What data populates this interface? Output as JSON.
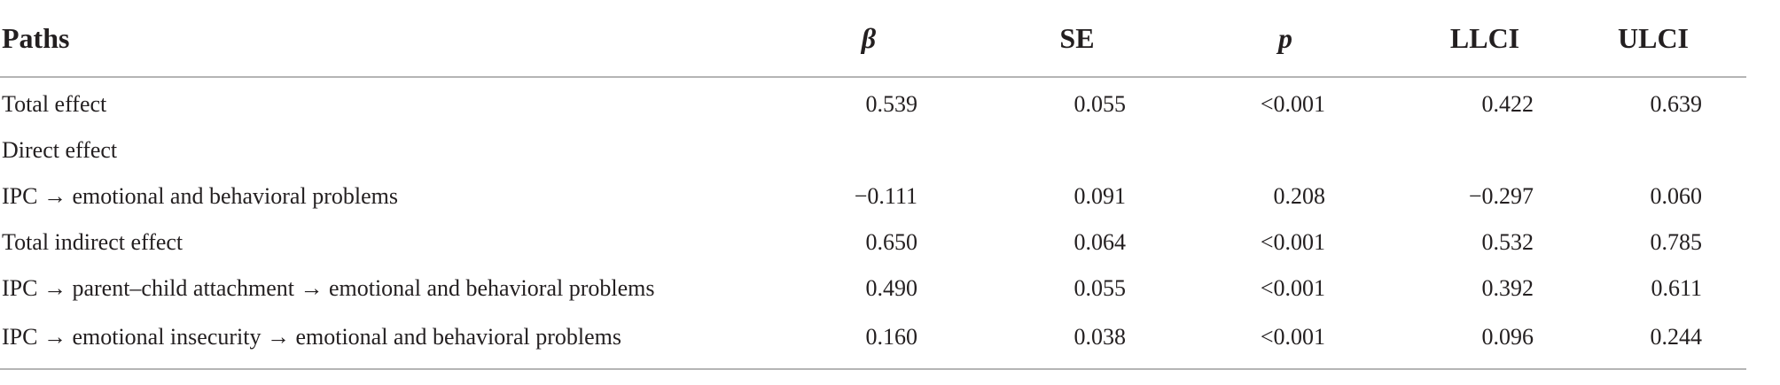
{
  "table": {
    "headers": {
      "paths": "Paths",
      "beta": "β",
      "se": "SE",
      "p": "p",
      "llci": "LLCI",
      "ulci": "ULCI"
    },
    "rows": [
      {
        "path": "Total effect",
        "beta": "0.539",
        "se": "0.055",
        "p": "<0.001",
        "llci": "0.422",
        "ulci": "0.639"
      },
      {
        "path": "Direct effect",
        "beta": "",
        "se": "",
        "p": "",
        "llci": "",
        "ulci": ""
      },
      {
        "path": "IPC → emotional and behavioral problems",
        "beta": "−0.111",
        "se": "0.091",
        "p": "0.208",
        "llci": "−0.297",
        "ulci": "0.060"
      },
      {
        "path": "Total indirect effect",
        "beta": "0.650",
        "se": "0.064",
        "p": "<0.001",
        "llci": "0.532",
        "ulci": "0.785"
      },
      {
        "path": "IPC → parent–child attachment → emotional and behavioral problems",
        "beta": "0.490",
        "se": "0.055",
        "p": "<0.001",
        "llci": "0.392",
        "ulci": "0.611"
      },
      {
        "path": "IPC → emotional insecurity → emotional and behavioral problems",
        "beta": "0.160",
        "se": "0.038",
        "p": "<0.001",
        "llci": "0.096",
        "ulci": "0.244"
      }
    ]
  }
}
